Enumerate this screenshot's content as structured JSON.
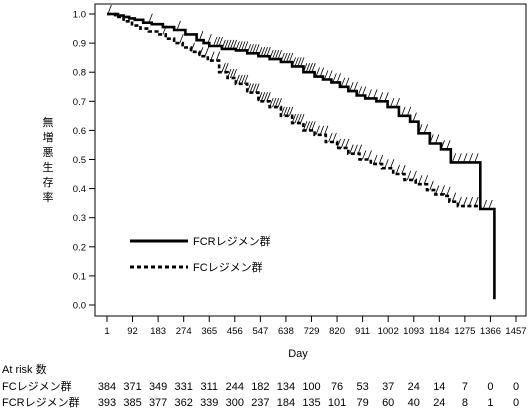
{
  "chart_data": {
    "type": "line",
    "subtype": "kaplan-meier",
    "title": "",
    "xlabel": "Day",
    "ylabel": "無増悪生存率",
    "xlim": [
      0,
      1500
    ],
    "ylim": [
      0.0,
      1.0
    ],
    "x_ticks": [
      "1",
      "92",
      "183",
      "274",
      "365",
      "456",
      "547",
      "638",
      "729",
      "820",
      "911",
      "1002",
      "1093",
      "1184",
      "1275",
      "1366",
      "1457"
    ],
    "y_ticks": [
      "0.0",
      "0.1",
      "0.2",
      "0.3",
      "0.4",
      "0.5",
      "0.6",
      "0.7",
      "0.8",
      "0.9",
      "1.0"
    ],
    "grid": false,
    "legend_position": "lower-left",
    "series": [
      {
        "name": "FCRレジメン群",
        "line_style": "solid",
        "color": "#000000",
        "points": [
          [
            1,
            1.0
          ],
          [
            20,
            1.0
          ],
          [
            40,
            0.995
          ],
          [
            60,
            0.99
          ],
          [
            80,
            0.985
          ],
          [
            100,
            0.98
          ],
          [
            130,
            0.97
          ],
          [
            160,
            0.965
          ],
          [
            200,
            0.955
          ],
          [
            240,
            0.945
          ],
          [
            280,
            0.93
          ],
          [
            320,
            0.91
          ],
          [
            345,
            0.9
          ],
          [
            365,
            0.89
          ],
          [
            410,
            0.88
          ],
          [
            460,
            0.875
          ],
          [
            500,
            0.865
          ],
          [
            540,
            0.855
          ],
          [
            580,
            0.845
          ],
          [
            620,
            0.835
          ],
          [
            660,
            0.82
          ],
          [
            700,
            0.8
          ],
          [
            740,
            0.785
          ],
          [
            770,
            0.775
          ],
          [
            800,
            0.765
          ],
          [
            830,
            0.75
          ],
          [
            860,
            0.735
          ],
          [
            890,
            0.72
          ],
          [
            920,
            0.71
          ],
          [
            960,
            0.7
          ],
          [
            1000,
            0.68
          ],
          [
            1040,
            0.65
          ],
          [
            1080,
            0.63
          ],
          [
            1110,
            0.59
          ],
          [
            1150,
            0.555
          ],
          [
            1190,
            0.535
          ],
          [
            1225,
            0.49
          ],
          [
            1310,
            0.49
          ],
          [
            1330,
            0.33
          ],
          [
            1380,
            0.33
          ],
          [
            1380,
            0.02
          ]
        ],
        "censor_x": [
          4,
          150,
          250,
          330,
          360,
          380,
          390,
          400,
          410,
          420,
          430,
          440,
          450,
          460,
          470,
          480,
          490,
          500,
          510,
          520,
          530,
          540,
          550,
          560,
          570,
          580,
          590,
          600,
          610,
          620,
          630,
          640,
          650,
          660,
          670,
          680,
          690,
          700,
          710,
          720,
          730,
          745,
          760,
          775,
          790,
          805,
          820,
          835,
          850,
          865,
          880,
          895,
          910,
          930,
          950,
          970,
          990,
          1010,
          1030,
          1050,
          1070,
          1090,
          1110,
          1130,
          1150,
          1170,
          1190,
          1210,
          1230,
          1250,
          1270,
          1290,
          1310,
          1340,
          1360
        ]
      },
      {
        "name": "FCレジメン群",
        "line_style": "dashed",
        "color": "#000000",
        "points": [
          [
            1,
            1.0
          ],
          [
            30,
            0.99
          ],
          [
            60,
            0.975
          ],
          [
            90,
            0.96
          ],
          [
            120,
            0.95
          ],
          [
            150,
            0.94
          ],
          [
            180,
            0.93
          ],
          [
            210,
            0.915
          ],
          [
            240,
            0.9
          ],
          [
            270,
            0.885
          ],
          [
            300,
            0.87
          ],
          [
            330,
            0.855
          ],
          [
            360,
            0.84
          ],
          [
            400,
            0.8
          ],
          [
            430,
            0.78
          ],
          [
            460,
            0.76
          ],
          [
            500,
            0.73
          ],
          [
            540,
            0.7
          ],
          [
            580,
            0.68
          ],
          [
            620,
            0.65
          ],
          [
            660,
            0.625
          ],
          [
            700,
            0.6
          ],
          [
            740,
            0.585
          ],
          [
            780,
            0.56
          ],
          [
            820,
            0.54
          ],
          [
            860,
            0.52
          ],
          [
            900,
            0.5
          ],
          [
            940,
            0.485
          ],
          [
            980,
            0.47
          ],
          [
            1020,
            0.45
          ],
          [
            1060,
            0.43
          ],
          [
            1100,
            0.415
          ],
          [
            1140,
            0.395
          ],
          [
            1170,
            0.38
          ],
          [
            1200,
            0.375
          ],
          [
            1220,
            0.355
          ],
          [
            1250,
            0.34
          ],
          [
            1290,
            0.34
          ],
          [
            1330,
            0.335
          ]
        ],
        "censor_x": [
          200,
          260,
          300,
          330,
          350,
          370,
          390,
          410,
          420,
          430,
          440,
          450,
          460,
          470,
          480,
          490,
          500,
          510,
          520,
          530,
          540,
          550,
          560,
          570,
          580,
          590,
          600,
          610,
          620,
          630,
          640,
          650,
          660,
          670,
          680,
          690,
          700,
          710,
          720,
          730,
          745,
          760,
          775,
          790,
          805,
          820,
          835,
          850,
          865,
          880,
          895,
          910,
          930,
          950,
          970,
          990,
          1010,
          1030,
          1050,
          1070,
          1090,
          1110,
          1130,
          1150,
          1170,
          1190,
          1210,
          1230,
          1250,
          1270,
          1290,
          1310
        ]
      }
    ],
    "at_risk": {
      "title": "At risk 数",
      "rows": [
        {
          "label": "FCレジメン群",
          "values": [
            "384",
            "371",
            "349",
            "331",
            "311",
            "244",
            "182",
            "134",
            "100",
            "76",
            "53",
            "37",
            "24",
            "14",
            "7",
            "0",
            "0"
          ]
        },
        {
          "label": "FCRレジメン群",
          "values": [
            "393",
            "385",
            "377",
            "362",
            "339",
            "300",
            "237",
            "184",
            "135",
            "101",
            "79",
            "60",
            "40",
            "24",
            "8",
            "1",
            "0"
          ]
        }
      ]
    }
  }
}
